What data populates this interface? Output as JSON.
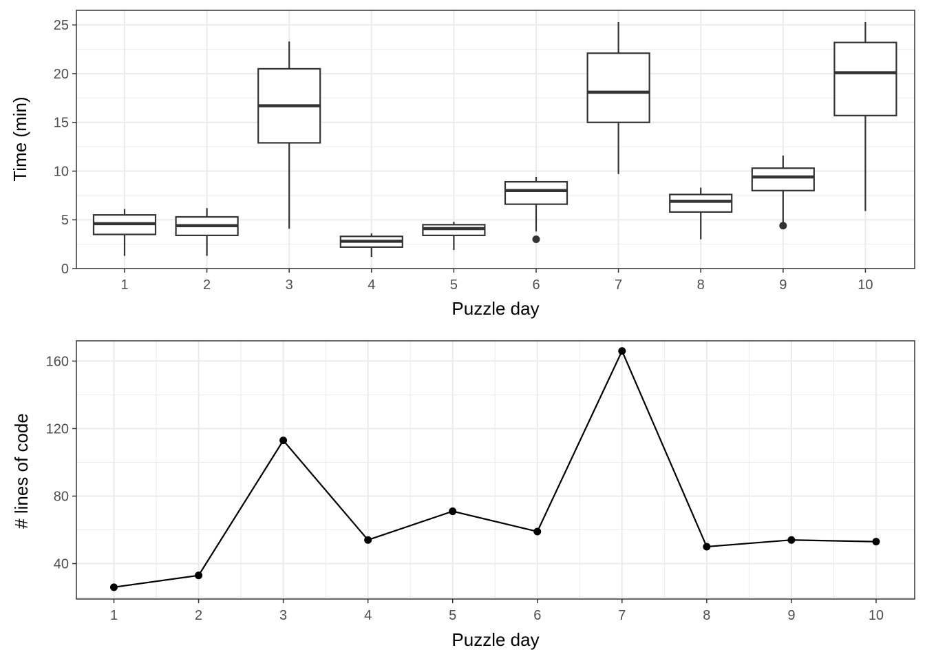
{
  "chart_data": [
    {
      "type": "box",
      "xlabel": "Puzzle day",
      "ylabel": "Time (min)",
      "ylim": [
        0,
        26.5
      ],
      "yticks": [
        0,
        5,
        10,
        15,
        20,
        25
      ],
      "grid": true,
      "theme": "black-and-white",
      "categories": [
        "1",
        "2",
        "3",
        "4",
        "5",
        "6",
        "7",
        "8",
        "9",
        "10"
      ],
      "boxes": [
        {
          "category": "1",
          "whisker_low": 1.3,
          "q1": 3.5,
          "median": 4.6,
          "q3": 5.5,
          "whisker_high": 6.1,
          "outliers": []
        },
        {
          "category": "2",
          "whisker_low": 1.3,
          "q1": 3.4,
          "median": 4.4,
          "q3": 5.3,
          "whisker_high": 6.2,
          "outliers": []
        },
        {
          "category": "3",
          "whisker_low": 4.1,
          "q1": 12.9,
          "median": 16.7,
          "q3": 20.5,
          "whisker_high": 23.3,
          "outliers": []
        },
        {
          "category": "4",
          "whisker_low": 1.2,
          "q1": 2.2,
          "median": 2.8,
          "q3": 3.3,
          "whisker_high": 3.6,
          "outliers": []
        },
        {
          "category": "5",
          "whisker_low": 1.9,
          "q1": 3.4,
          "median": 4.1,
          "q3": 4.5,
          "whisker_high": 4.8,
          "outliers": []
        },
        {
          "category": "6",
          "whisker_low": 3.8,
          "q1": 6.6,
          "median": 8.0,
          "q3": 8.9,
          "whisker_high": 9.4,
          "outliers": [
            3.0
          ]
        },
        {
          "category": "7",
          "whisker_low": 9.7,
          "q1": 15.0,
          "median": 18.1,
          "q3": 22.1,
          "whisker_high": 25.3,
          "outliers": []
        },
        {
          "category": "8",
          "whisker_low": 3.0,
          "q1": 5.8,
          "median": 6.9,
          "q3": 7.6,
          "whisker_high": 8.3,
          "outliers": []
        },
        {
          "category": "9",
          "whisker_low": 4.5,
          "q1": 8.0,
          "median": 9.4,
          "q3": 10.3,
          "whisker_high": 11.6,
          "outliers": [
            4.4
          ]
        },
        {
          "category": "10",
          "whisker_low": 5.9,
          "q1": 15.7,
          "median": 20.1,
          "q3": 23.2,
          "whisker_high": 25.3,
          "outliers": []
        }
      ]
    },
    {
      "type": "line",
      "xlabel": "Puzzle day",
      "ylabel": "# lines of code",
      "ylim": [
        19,
        172
      ],
      "yticks": [
        40,
        80,
        120,
        160
      ],
      "grid": true,
      "markers": true,
      "theme": "black-and-white",
      "x": [
        1,
        2,
        3,
        4,
        5,
        6,
        7,
        8,
        9,
        10
      ],
      "x_tick_labels": [
        "1",
        "2",
        "3",
        "4",
        "5",
        "6",
        "7",
        "8",
        "9",
        "10"
      ],
      "values": [
        26,
        33,
        113,
        54,
        71,
        59,
        166,
        50,
        54,
        53
      ]
    }
  ]
}
